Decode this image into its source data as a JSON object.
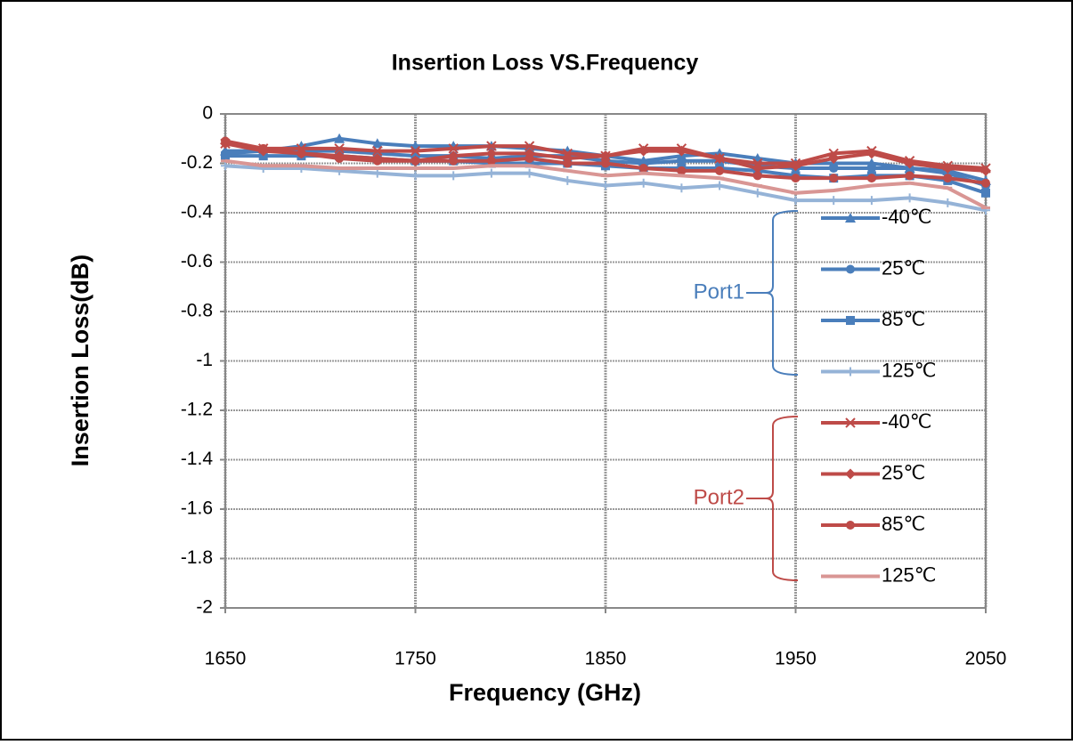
{
  "chart_data": {
    "type": "line",
    "title": "Insertion Loss VS.Frequency",
    "x_label": "Frequency (GHz)",
    "y_label": "Insertion Loss(dB)",
    "x": [
      1650,
      1670,
      1690,
      1710,
      1730,
      1750,
      1770,
      1790,
      1810,
      1830,
      1850,
      1870,
      1890,
      1910,
      1930,
      1950,
      1970,
      1990,
      2010,
      2030,
      2050
    ],
    "xlim": [
      1650,
      2050
    ],
    "xticks": [
      1650,
      1750,
      1850,
      1950,
      2050
    ],
    "ylim": [
      -2,
      0
    ],
    "yticks": [
      0,
      -0.2,
      -0.4,
      -0.6,
      -0.8,
      -1,
      -1.2,
      -1.4,
      -1.6,
      -1.8,
      -2
    ],
    "grid": true,
    "series": [
      {
        "name": "-40℃",
        "color": "#4a7ebb",
        "marker": "triangle",
        "values": [
          -0.15,
          -0.15,
          -0.13,
          -0.1,
          -0.12,
          -0.13,
          -0.13,
          -0.13,
          -0.14,
          -0.15,
          -0.17,
          -0.19,
          -0.17,
          -0.16,
          -0.18,
          -0.2,
          -0.2,
          -0.2,
          -0.22,
          -0.23,
          -0.27
        ]
      },
      {
        "name": "25℃",
        "color": "#4a7ebb",
        "marker": "circle",
        "values": [
          -0.16,
          -0.15,
          -0.15,
          -0.15,
          -0.16,
          -0.17,
          -0.17,
          -0.18,
          -0.17,
          -0.17,
          -0.19,
          -0.2,
          -0.19,
          -0.19,
          -0.21,
          -0.22,
          -0.22,
          -0.22,
          -0.22,
          -0.24,
          -0.29
        ]
      },
      {
        "name": "85℃",
        "color": "#4a7ebb",
        "marker": "square",
        "values": [
          -0.17,
          -0.17,
          -0.17,
          -0.17,
          -0.18,
          -0.19,
          -0.19,
          -0.2,
          -0.2,
          -0.2,
          -0.21,
          -0.22,
          -0.22,
          -0.22,
          -0.23,
          -0.25,
          -0.26,
          -0.25,
          -0.25,
          -0.27,
          -0.32
        ]
      },
      {
        "name": "125℃",
        "color": "#95b3d7",
        "marker": "plus",
        "values": [
          -0.21,
          -0.22,
          -0.22,
          -0.23,
          -0.24,
          -0.25,
          -0.25,
          -0.24,
          -0.24,
          -0.27,
          -0.29,
          -0.28,
          -0.3,
          -0.29,
          -0.32,
          -0.35,
          -0.35,
          -0.35,
          -0.34,
          -0.36,
          -0.39
        ]
      },
      {
        "name": "-40℃",
        "color": "#be4b48",
        "marker": "x",
        "values": [
          -0.12,
          -0.14,
          -0.14,
          -0.14,
          -0.15,
          -0.15,
          -0.14,
          -0.13,
          -0.13,
          -0.16,
          -0.17,
          -0.14,
          -0.14,
          -0.18,
          -0.2,
          -0.2,
          -0.16,
          -0.15,
          -0.19,
          -0.21,
          -0.22
        ]
      },
      {
        "name": "25℃",
        "color": "#be4b48",
        "marker": "diamond",
        "values": [
          -0.12,
          -0.15,
          -0.16,
          -0.17,
          -0.18,
          -0.19,
          -0.17,
          -0.16,
          -0.16,
          -0.18,
          -0.17,
          -0.15,
          -0.15,
          -0.18,
          -0.22,
          -0.21,
          -0.18,
          -0.16,
          -0.2,
          -0.22,
          -0.23
        ]
      },
      {
        "name": "85℃",
        "color": "#be4b48",
        "marker": "circle",
        "values": [
          -0.11,
          -0.14,
          -0.16,
          -0.18,
          -0.19,
          -0.19,
          -0.19,
          -0.19,
          -0.18,
          -0.2,
          -0.2,
          -0.22,
          -0.23,
          -0.23,
          -0.25,
          -0.26,
          -0.26,
          -0.26,
          -0.25,
          -0.26,
          -0.28
        ]
      },
      {
        "name": "125℃",
        "color": "#d99694",
        "marker": "dash",
        "values": [
          -0.19,
          -0.21,
          -0.21,
          -0.22,
          -0.22,
          -0.22,
          -0.22,
          -0.21,
          -0.21,
          -0.23,
          -0.25,
          -0.24,
          -0.25,
          -0.26,
          -0.29,
          -0.32,
          -0.31,
          -0.29,
          -0.28,
          -0.3,
          -0.38
        ]
      }
    ],
    "annotations": [
      {
        "text": "Port1",
        "color": "#4a7ebb"
      },
      {
        "text": "Port2",
        "color": "#be4b48"
      }
    ]
  }
}
